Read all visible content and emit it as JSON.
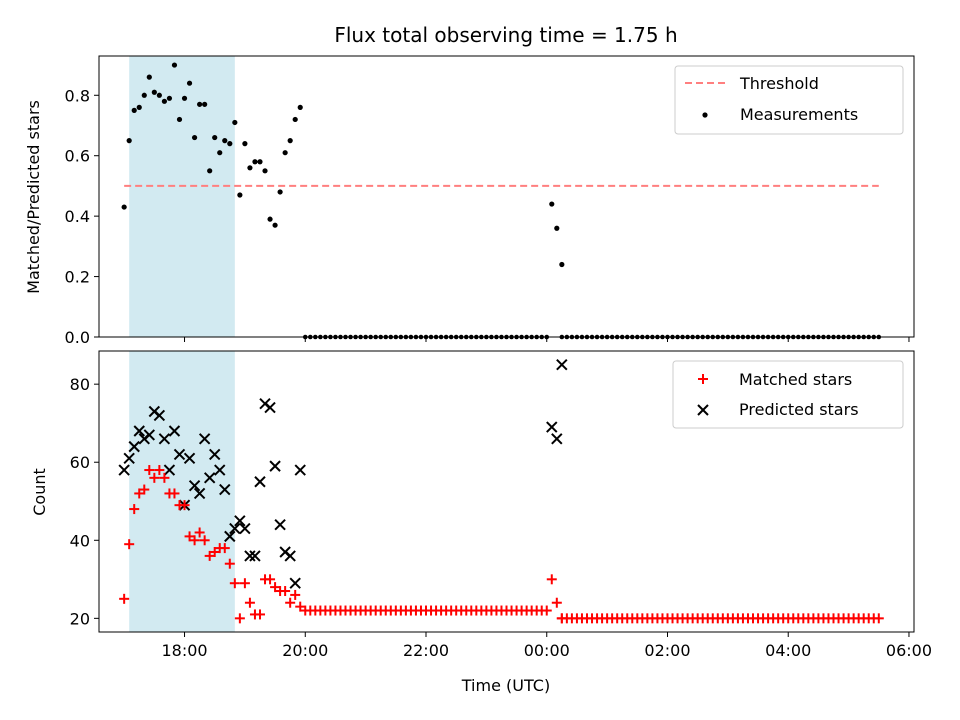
{
  "chart_data": [
    {
      "type": "scatter",
      "title": "Flux total observing time = 1.75 h",
      "ylabel": "Matched/Predicted stars",
      "xlim": [
        "16:35",
        "06:05"
      ],
      "ylim": [
        0,
        0.93
      ],
      "yticks": [
        0.0,
        0.2,
        0.4,
        0.6,
        0.8
      ],
      "shaded_interval": [
        "17:05",
        "18:50"
      ],
      "shade_color": "#add8e6",
      "legend_position": "top-right",
      "threshold": {
        "name": "Threshold",
        "value": 0.5,
        "x_range": [
          "17:00",
          "05:30"
        ],
        "color": "#ff7f7f"
      },
      "series": [
        {
          "name": "Measurements",
          "color": "#000000",
          "marker": "dot",
          "x": [
            "17:00",
            "17:05",
            "17:10",
            "17:15",
            "17:20",
            "17:25",
            "17:30",
            "17:35",
            "17:40",
            "17:45",
            "17:50",
            "17:55",
            "18:00",
            "18:05",
            "18:10",
            "18:15",
            "18:20",
            "18:25",
            "18:30",
            "18:35",
            "18:40",
            "18:45",
            "18:50",
            "18:55",
            "19:00",
            "19:05",
            "19:10",
            "19:15",
            "19:20",
            "19:25",
            "19:30",
            "19:35",
            "19:40",
            "19:45",
            "19:50",
            "19:55",
            "00:05",
            "00:10",
            "00:15"
          ],
          "y": [
            0.43,
            0.65,
            0.75,
            0.76,
            0.8,
            0.86,
            0.81,
            0.8,
            0.78,
            0.79,
            0.9,
            0.72,
            0.79,
            0.84,
            0.66,
            0.77,
            0.77,
            0.55,
            0.66,
            0.61,
            0.65,
            0.64,
            0.71,
            0.47,
            0.64,
            0.56,
            0.58,
            0.58,
            0.55,
            0.39,
            0.37,
            0.48,
            0.61,
            0.65,
            0.72,
            0.76,
            0.44,
            0.36,
            0.24
          ],
          "zero_segments": [
            [
              "20:00",
              "00:00"
            ],
            [
              "00:15",
              "05:30"
            ]
          ]
        }
      ]
    },
    {
      "type": "scatter",
      "xlabel": "Time (UTC)",
      "ylabel": "Count",
      "xlim": [
        "16:35",
        "06:05"
      ],
      "ylim": [
        16.5,
        88.5
      ],
      "xticks": [
        "18:00",
        "20:00",
        "22:00",
        "00:00",
        "02:00",
        "04:00",
        "06:00"
      ],
      "yticks": [
        20,
        40,
        60,
        80
      ],
      "shaded_interval": [
        "17:05",
        "18:50"
      ],
      "legend_position": "top-right",
      "series": [
        {
          "name": "Matched stars",
          "color": "#ff0000",
          "marker": "plus",
          "x": [
            "17:00",
            "17:05",
            "17:10",
            "17:15",
            "17:20",
            "17:25",
            "17:30",
            "17:35",
            "17:40",
            "17:45",
            "17:50",
            "17:55",
            "18:00",
            "18:05",
            "18:10",
            "18:15",
            "18:20",
            "18:25",
            "18:30",
            "18:35",
            "18:40",
            "18:45",
            "18:50",
            "18:55",
            "19:00",
            "19:05",
            "19:10",
            "19:15",
            "19:20",
            "19:25",
            "19:30",
            "19:35",
            "19:40",
            "19:45",
            "19:50",
            "19:55",
            "00:05",
            "00:10",
            "00:15"
          ],
          "y": [
            25,
            39,
            48,
            52,
            53,
            58,
            56,
            58,
            56,
            52,
            52,
            49,
            49,
            41,
            40,
            42,
            40,
            36,
            37,
            38,
            38,
            34,
            29,
            20,
            29,
            24,
            21,
            21,
            30,
            30,
            28,
            27,
            27,
            24,
            26,
            23,
            30,
            24,
            20
          ],
          "baseline_segments": [
            {
              "from": "20:00",
              "to": "00:00",
              "value": 22
            },
            {
              "from": "00:15",
              "to": "05:30",
              "value": 20
            }
          ]
        },
        {
          "name": "Predicted stars",
          "color": "#000000",
          "marker": "x",
          "x": [
            "17:00",
            "17:05",
            "17:10",
            "17:15",
            "17:20",
            "17:25",
            "17:30",
            "17:35",
            "17:40",
            "17:45",
            "17:50",
            "17:55",
            "18:00",
            "18:05",
            "18:10",
            "18:15",
            "18:20",
            "18:25",
            "18:30",
            "18:35",
            "18:40",
            "18:45",
            "18:50",
            "18:55",
            "19:00",
            "19:05",
            "19:10",
            "19:15",
            "19:20",
            "19:25",
            "19:30",
            "19:35",
            "19:40",
            "19:45",
            "19:50",
            "19:55",
            "00:05",
            "00:10",
            "00:15"
          ],
          "y": [
            58,
            61,
            64,
            68,
            66,
            67,
            73,
            72,
            66,
            58,
            68,
            62,
            49,
            61,
            54,
            52,
            66,
            56,
            62,
            58,
            53,
            41,
            43,
            45,
            43,
            36,
            36,
            55,
            75,
            74,
            59,
            44,
            37,
            36,
            29,
            58,
            69,
            66,
            85
          ]
        }
      ]
    }
  ]
}
